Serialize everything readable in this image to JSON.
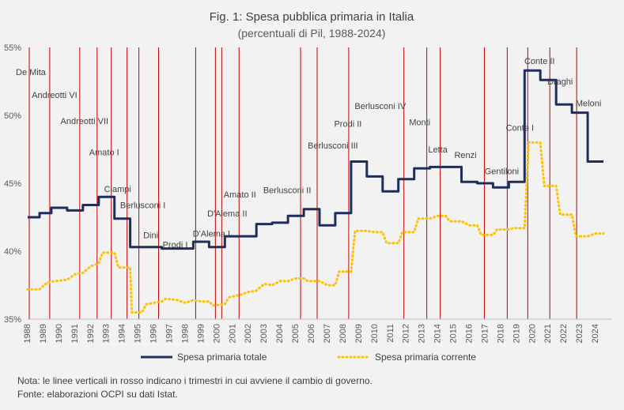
{
  "chart_data": {
    "type": "line",
    "title": "Fig. 1: Spesa pubblica primaria in Italia",
    "subtitle": "(percentuali di Pil, 1988-2024)",
    "xlabel": "",
    "ylabel": "",
    "xlim": [
      1988,
      2025
    ],
    "ylim": [
      35,
      55
    ],
    "y_ticks": [
      "35%",
      "40%",
      "45%",
      "50%",
      "55%"
    ],
    "x_ticks": [
      "1988",
      "1989",
      "1990",
      "1991",
      "1992",
      "1993",
      "1994",
      "1995",
      "1996",
      "1997",
      "1998",
      "1999",
      "2000",
      "2001",
      "2002",
      "2003",
      "2004",
      "2005",
      "2006",
      "2007",
      "2008",
      "2009",
      "2010",
      "2011",
      "2012",
      "2013",
      "2014",
      "2015",
      "2016",
      "2017",
      "2018",
      "2019",
      "2020",
      "2021",
      "2022",
      "2023",
      "2024"
    ],
    "grid": false,
    "legend_position": "bottom",
    "series": [
      {
        "name": "Spesa primaria totale",
        "color": "#1f2d5c",
        "style": "solid",
        "points": [
          [
            1988.0,
            42.5
          ],
          [
            1988.75,
            42.5
          ],
          [
            1988.75,
            42.8
          ],
          [
            1989.5,
            42.8
          ],
          [
            1989.5,
            43.2
          ],
          [
            1990.5,
            43.2
          ],
          [
            1990.5,
            43.0
          ],
          [
            1991.5,
            43.0
          ],
          [
            1991.5,
            43.4
          ],
          [
            1992.5,
            43.4
          ],
          [
            1992.5,
            44.0
          ],
          [
            1993.5,
            44.0
          ],
          [
            1993.5,
            42.4
          ],
          [
            1994.5,
            42.4
          ],
          [
            1994.5,
            40.3
          ],
          [
            1995.5,
            40.3
          ],
          [
            1996.5,
            40.3
          ],
          [
            1996.5,
            40.2
          ],
          [
            1997.5,
            40.2
          ],
          [
            1998.5,
            40.2
          ],
          [
            1998.5,
            40.7
          ],
          [
            1999.5,
            40.7
          ],
          [
            1999.5,
            40.3
          ],
          [
            2000.5,
            40.3
          ],
          [
            2000.5,
            41.1
          ],
          [
            2002.5,
            41.1
          ],
          [
            2002.5,
            42.0
          ],
          [
            2003.5,
            42.0
          ],
          [
            2003.5,
            42.1
          ],
          [
            2004.5,
            42.1
          ],
          [
            2004.5,
            42.6
          ],
          [
            2005.5,
            42.6
          ],
          [
            2005.5,
            43.1
          ],
          [
            2006.5,
            43.1
          ],
          [
            2006.5,
            41.9
          ],
          [
            2007.5,
            41.9
          ],
          [
            2007.5,
            42.8
          ],
          [
            2008.5,
            42.8
          ],
          [
            2008.5,
            46.6
          ],
          [
            2009.5,
            46.6
          ],
          [
            2009.5,
            45.5
          ],
          [
            2010.5,
            45.5
          ],
          [
            2010.5,
            44.4
          ],
          [
            2011.5,
            44.4
          ],
          [
            2011.5,
            45.3
          ],
          [
            2012.5,
            45.3
          ],
          [
            2012.5,
            46.1
          ],
          [
            2013.5,
            46.1
          ],
          [
            2013.5,
            46.2
          ],
          [
            2015.5,
            46.2
          ],
          [
            2015.5,
            45.1
          ],
          [
            2016.5,
            45.1
          ],
          [
            2016.5,
            45.0
          ],
          [
            2017.5,
            45.0
          ],
          [
            2017.5,
            44.7
          ],
          [
            2018.5,
            44.7
          ],
          [
            2018.5,
            45.1
          ],
          [
            2019.5,
            45.1
          ],
          [
            2019.5,
            53.3
          ],
          [
            2020.5,
            53.3
          ],
          [
            2020.5,
            52.6
          ],
          [
            2021.5,
            52.6
          ],
          [
            2021.5,
            50.8
          ],
          [
            2022.5,
            50.8
          ],
          [
            2022.5,
            50.2
          ],
          [
            2023.5,
            50.2
          ],
          [
            2023.5,
            46.6
          ],
          [
            2024.5,
            46.6
          ]
        ]
      },
      {
        "name": "Spesa primaria corrente",
        "color": "#ffc000",
        "style": "dotted",
        "points": [
          [
            1988.0,
            37.2
          ],
          [
            1988.75,
            37.2
          ],
          [
            1989.25,
            37.7
          ],
          [
            1989.75,
            37.8
          ],
          [
            1990.5,
            37.9
          ],
          [
            1991.0,
            38.3
          ],
          [
            1991.5,
            38.4
          ],
          [
            1992.0,
            38.9
          ],
          [
            1992.5,
            39.1
          ],
          [
            1992.75,
            39.9
          ],
          [
            1993.5,
            39.9
          ],
          [
            1993.75,
            38.8
          ],
          [
            1994.5,
            38.8
          ],
          [
            1994.6,
            35.5
          ],
          [
            1995.25,
            35.5
          ],
          [
            1995.5,
            36.1
          ],
          [
            1996.0,
            36.2
          ],
          [
            1996.5,
            36.3
          ],
          [
            1996.75,
            36.5
          ],
          [
            1997.5,
            36.4
          ],
          [
            1998.0,
            36.2
          ],
          [
            1998.5,
            36.4
          ],
          [
            1999.0,
            36.3
          ],
          [
            1999.5,
            36.3
          ],
          [
            1999.75,
            36.0
          ],
          [
            2000.5,
            36.1
          ],
          [
            2000.75,
            36.6
          ],
          [
            2001.5,
            36.8
          ],
          [
            2002.0,
            37.0
          ],
          [
            2002.5,
            37.1
          ],
          [
            2003.0,
            37.6
          ],
          [
            2003.5,
            37.5
          ],
          [
            2004.0,
            37.8
          ],
          [
            2004.5,
            37.8
          ],
          [
            2005.0,
            38.0
          ],
          [
            2005.5,
            38.0
          ],
          [
            2005.75,
            37.8
          ],
          [
            2006.5,
            37.8
          ],
          [
            2007.0,
            37.5
          ],
          [
            2007.5,
            37.5
          ],
          [
            2007.75,
            38.5
          ],
          [
            2008.5,
            38.5
          ],
          [
            2008.75,
            41.5
          ],
          [
            2009.5,
            41.5
          ],
          [
            2010.0,
            41.4
          ],
          [
            2010.5,
            41.4
          ],
          [
            2010.75,
            40.6
          ],
          [
            2011.5,
            40.6
          ],
          [
            2011.75,
            41.4
          ],
          [
            2012.5,
            41.4
          ],
          [
            2012.75,
            42.4
          ],
          [
            2013.5,
            42.4
          ],
          [
            2014.0,
            42.6
          ],
          [
            2014.5,
            42.6
          ],
          [
            2014.75,
            42.2
          ],
          [
            2015.5,
            42.2
          ],
          [
            2016.0,
            41.9
          ],
          [
            2016.5,
            41.9
          ],
          [
            2016.75,
            41.2
          ],
          [
            2017.5,
            41.2
          ],
          [
            2017.75,
            41.6
          ],
          [
            2018.5,
            41.6
          ],
          [
            2018.75,
            41.7
          ],
          [
            2019.5,
            41.7
          ],
          [
            2019.75,
            48.0
          ],
          [
            2020.5,
            48.0
          ],
          [
            2020.75,
            44.8
          ],
          [
            2021.5,
            44.8
          ],
          [
            2021.75,
            42.7
          ],
          [
            2022.5,
            42.7
          ],
          [
            2022.75,
            41.1
          ],
          [
            2023.5,
            41.1
          ],
          [
            2024.0,
            41.3
          ],
          [
            2024.5,
            41.3
          ]
        ]
      }
    ],
    "government_changes": [
      1988.1,
      1989.4,
      1991.3,
      1992.4,
      1993.3,
      1994.3,
      1995.05,
      1996.3,
      1998.65,
      1999.9,
      2000.3,
      2001.4,
      2005.3,
      2006.35,
      2008.35,
      2011.85,
      2013.3,
      2014.15,
      2016.95,
      2018.4,
      2019.7,
      2021.1,
      2022.8
    ],
    "annotations": [
      {
        "label": "De Mita",
        "x": 1988.2,
        "y": 53.2
      },
      {
        "label": "Andreotti VI",
        "x": 1989.7,
        "y": 51.5
      },
      {
        "label": "Andreotti VII",
        "x": 1991.6,
        "y": 49.6
      },
      {
        "label": "Amato I",
        "x": 1992.85,
        "y": 47.3
      },
      {
        "label": "Ciampi",
        "x": 1993.7,
        "y": 44.6
      },
      {
        "label": "Berlusconi I",
        "x": 1995.3,
        "y": 43.4
      },
      {
        "label": "Dini",
        "x": 1995.8,
        "y": 41.2
      },
      {
        "label": "Prodi I",
        "x": 1997.35,
        "y": 40.5
      },
      {
        "label": "D'Alema I",
        "x": 1999.65,
        "y": 41.3
      },
      {
        "label": "D'Alema II",
        "x": 2000.65,
        "y": 42.8
      },
      {
        "label": "Amato II",
        "x": 2001.45,
        "y": 44.2
      },
      {
        "label": "Berlusconi II",
        "x": 2004.45,
        "y": 44.5
      },
      {
        "label": "Berlusconi III",
        "x": 2007.35,
        "y": 47.8
      },
      {
        "label": "Prodi II",
        "x": 2008.3,
        "y": 49.4
      },
      {
        "label": "Berlusconi IV",
        "x": 2010.35,
        "y": 50.7
      },
      {
        "label": "Monti",
        "x": 2012.85,
        "y": 49.5
      },
      {
        "label": "Letta",
        "x": 2014.0,
        "y": 47.5
      },
      {
        "label": "Renzi",
        "x": 2015.75,
        "y": 47.1
      },
      {
        "label": "Gentiloni",
        "x": 2018.05,
        "y": 45.9
      },
      {
        "label": "Conte I",
        "x": 2019.2,
        "y": 49.1
      },
      {
        "label": "Conte II",
        "x": 2020.45,
        "y": 54.0
      },
      {
        "label": "Draghi",
        "x": 2021.75,
        "y": 52.5
      },
      {
        "label": "Meloni",
        "x": 2023.55,
        "y": 50.9
      }
    ]
  },
  "notes": {
    "line1": "Nota: le linee verticali in rosso indicano i trimestri in cui avviene il cambio di governo.",
    "line2": "Fonte: elaborazioni OCPI su dati Istat."
  }
}
